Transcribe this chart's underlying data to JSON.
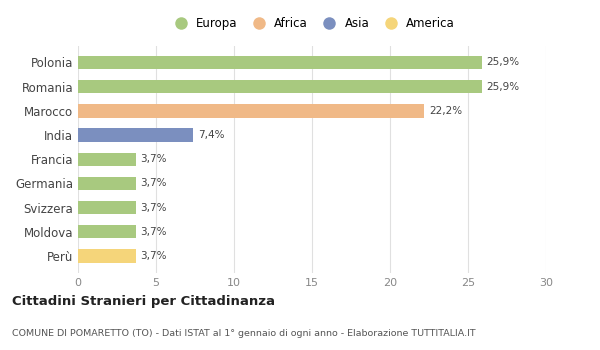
{
  "categories": [
    "Polonia",
    "Romania",
    "Marocco",
    "India",
    "Francia",
    "Germania",
    "Svizzera",
    "Moldova",
    "Perù"
  ],
  "values": [
    25.9,
    25.9,
    22.2,
    7.4,
    3.7,
    3.7,
    3.7,
    3.7,
    3.7
  ],
  "labels": [
    "25,9%",
    "25,9%",
    "22,2%",
    "7,4%",
    "3,7%",
    "3,7%",
    "3,7%",
    "3,7%",
    "3,7%"
  ],
  "colors": [
    "#a8c97f",
    "#a8c97f",
    "#f0b987",
    "#7b8fbf",
    "#a8c97f",
    "#a8c97f",
    "#a8c97f",
    "#a8c97f",
    "#f5d57a"
  ],
  "legend_labels": [
    "Europa",
    "Africa",
    "Asia",
    "America"
  ],
  "legend_colors": [
    "#a8c97f",
    "#f0b987",
    "#7b8fbf",
    "#f5d57a"
  ],
  "xlim": [
    0,
    30
  ],
  "xticks": [
    0,
    5,
    10,
    15,
    20,
    25,
    30
  ],
  "title": "Cittadini Stranieri per Cittadinanza",
  "subtitle": "COMUNE DI POMARETTO (TO) - Dati ISTAT al 1° gennaio di ogni anno - Elaborazione TUTTITALIA.IT",
  "background_color": "#ffffff",
  "grid_color": "#e0e0e0",
  "bar_height": 0.55
}
